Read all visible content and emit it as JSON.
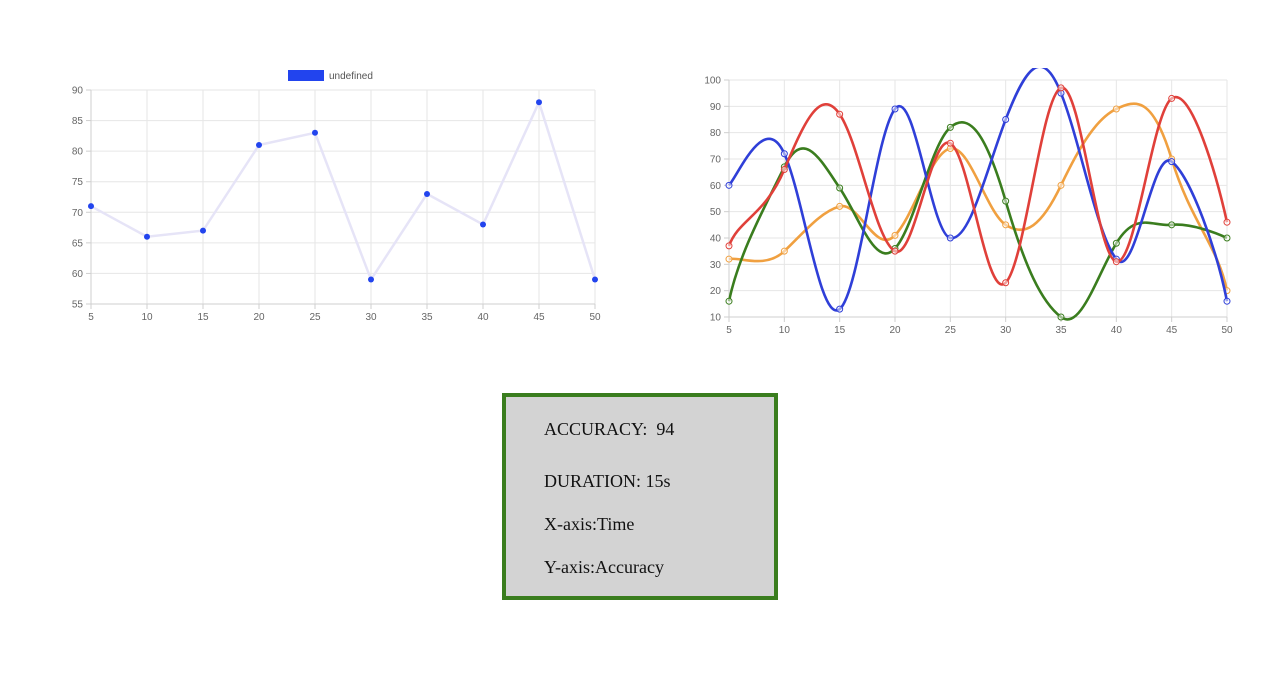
{
  "chart_data": [
    {
      "type": "line",
      "x": [
        5,
        10,
        15,
        20,
        25,
        30,
        35,
        40,
        45,
        50
      ],
      "series": [
        {
          "name": "undefined",
          "values": [
            71,
            66,
            67,
            81,
            83,
            59,
            73,
            68,
            88,
            59
          ],
          "color": "#2244ee",
          "line_color": "#e6e4f7"
        }
      ],
      "legend": "top-center",
      "xlim": [
        5,
        50
      ],
      "ylim": [
        55,
        90
      ],
      "yticks": [
        55,
        60,
        65,
        70,
        75,
        80,
        85,
        90
      ],
      "grid": true
    },
    {
      "type": "line",
      "x": [
        5,
        10,
        15,
        20,
        25,
        30,
        35,
        40,
        45,
        50
      ],
      "series": [
        {
          "values": [
            32,
            35,
            52,
            41,
            74,
            45,
            60,
            89,
            70,
            20
          ],
          "color": "#f0a040"
        },
        {
          "values": [
            16,
            67,
            59,
            36,
            82,
            54,
            10,
            38,
            45,
            40
          ],
          "color": "#3a7d1e"
        },
        {
          "values": [
            60,
            72,
            13,
            89,
            40,
            85,
            95,
            32,
            69,
            16
          ],
          "color": "#2f3fd8"
        },
        {
          "values": [
            37,
            66,
            87,
            35,
            76,
            23,
            97,
            31,
            93,
            46
          ],
          "color": "#e0403a"
        }
      ],
      "legend": "none",
      "xlim": [
        5,
        50
      ],
      "ylim": [
        10,
        100
      ],
      "yticks": [
        10,
        20,
        30,
        40,
        50,
        60,
        70,
        80,
        90,
        100
      ],
      "grid": true
    }
  ],
  "info": {
    "accuracy": "ACCURACY:  94",
    "duration": "DURATION: 15s",
    "xaxis": "X-axis:Time",
    "yaxis": "Y-axis:Accuracy"
  },
  "colors": {
    "box_border": "#3a7d1e",
    "box_bg": "#d3d3d3",
    "grid": "#e6e6e6"
  }
}
